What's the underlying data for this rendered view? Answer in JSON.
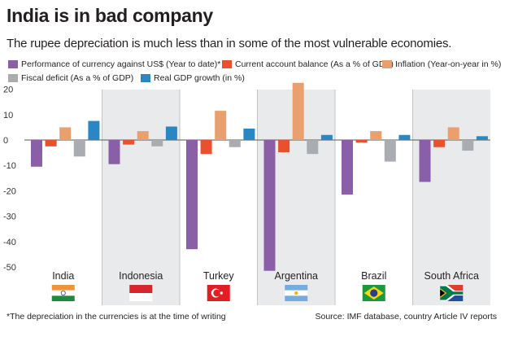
{
  "header": {
    "title": "India is in bad company",
    "subtitle": "The rupee depreciation is much less than in some of the most vulnerable economies."
  },
  "footer": {
    "footnote": "*The depreciation in the currencies is at the time of writing",
    "source": "Source: IMF database, country Article IV reports"
  },
  "colors": {
    "currency": "#8b5fa8",
    "current_account": "#e8502e",
    "inflation": "#e9a06e",
    "fiscal": "#a9adb1",
    "gdp": "#2a87c4",
    "panel_shade": "#e9eaeb",
    "divider": "#b8b8b8"
  },
  "chart_data": {
    "type": "bar",
    "categories": [
      "India",
      "Indonesia",
      "Turkey",
      "Argentina",
      "Brazil",
      "South Africa"
    ],
    "series": [
      {
        "name": "Performance of currency against US$ (Year to date)*",
        "color_key": "currency",
        "values": [
          -10.5,
          -9.5,
          -43,
          -51.5,
          -21.5,
          -16.5
        ]
      },
      {
        "name": "Current account balance (As a % of GDP)",
        "color_key": "current_account",
        "values": [
          -2.5,
          -1.8,
          -5.5,
          -4.8,
          -1,
          -2.8
        ]
      },
      {
        "name": "Inflation (Year-on-year in %)",
        "color_key": "inflation",
        "values": [
          5,
          3.5,
          11.5,
          22.5,
          3.5,
          5
        ]
      },
      {
        "name": "Fiscal deficit (As a % of GDP)",
        "color_key": "fiscal",
        "values": [
          -6.5,
          -2.5,
          -2.8,
          -5.5,
          -8.5,
          -4.2
        ]
      },
      {
        "name": "Real GDP growth (in %)",
        "color_key": "gdp",
        "values": [
          7.5,
          5.3,
          4.5,
          2,
          2,
          1.5
        ]
      }
    ],
    "yticks": [
      "20",
      "10",
      "0",
      "-10",
      "-20",
      "-30",
      "-40",
      "-50"
    ],
    "ylim": [
      -55,
      20
    ],
    "shaded_categories": [
      "Indonesia",
      "Argentina",
      "South Africa"
    ],
    "flags": [
      {
        "country": "India",
        "flag": "india-flag"
      },
      {
        "country": "Indonesia",
        "flag": "indonesia-flag"
      },
      {
        "country": "Turkey",
        "flag": "turkey-flag"
      },
      {
        "country": "Argentina",
        "flag": "argentina-flag"
      },
      {
        "country": "Brazil",
        "flag": "brazil-flag"
      },
      {
        "country": "South Africa",
        "flag": "south-africa-flag"
      }
    ],
    "legend_position": "top",
    "grid": false
  }
}
